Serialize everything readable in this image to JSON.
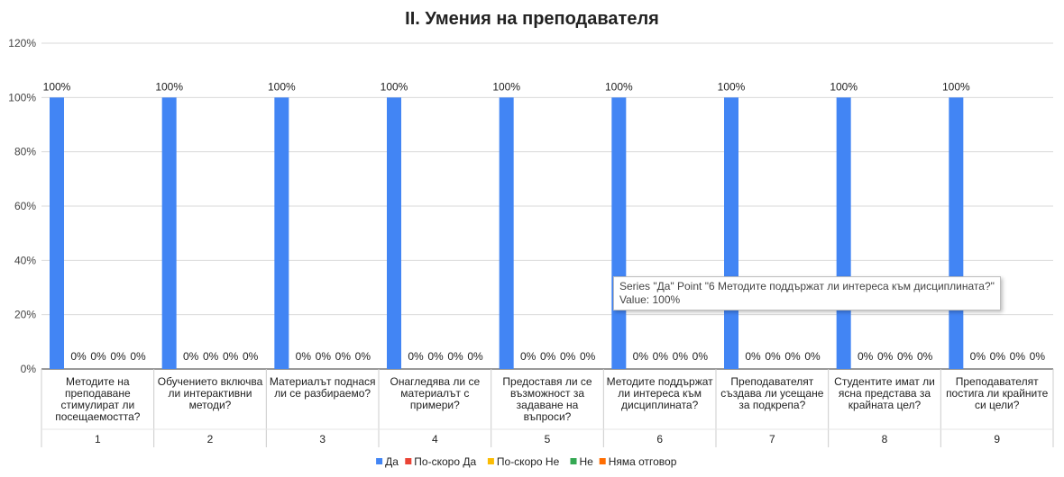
{
  "chart_data": {
    "type": "bar",
    "title": "II. Умения на преподавателя",
    "ylim": [
      0,
      1.2
    ],
    "y_ticks": [
      "0%",
      "20%",
      "40%",
      "60%",
      "80%",
      "100%",
      "120%"
    ],
    "grid": true,
    "legend_position": "bottom",
    "categories": [
      {
        "num": "1",
        "label": "Методите на преподаване стимулират ли посещаемостта?"
      },
      {
        "num": "2",
        "label": "Обучението включва ли интерактивни методи?"
      },
      {
        "num": "3",
        "label": "Материалът поднася ли се разбираемо?"
      },
      {
        "num": "4",
        "label": "Онагледява ли се материалът с примери?"
      },
      {
        "num": "5",
        "label": "Предоставя ли се възможност за задаване на въпроси?"
      },
      {
        "num": "6",
        "label": "Методите поддържат ли интереса към дисциплината?"
      },
      {
        "num": "7",
        "label": "Преподавателят създава ли усещане за подкрепа?"
      },
      {
        "num": "8",
        "label": "Студентите имат ли ясна представа за крайната цел?"
      },
      {
        "num": "9",
        "label": "Преподавателят постига ли крайните си цели?"
      }
    ],
    "category_label_lines": [
      [
        "Методите на",
        "преподаване",
        "стимулират ли",
        "посещаемостта?"
      ],
      [
        "Обучението включва",
        "ли интерактивни",
        "методи?"
      ],
      [
        "Материалът поднася",
        "ли се разбираемо?"
      ],
      [
        "Онагледява ли се",
        "материалът с",
        "примери?"
      ],
      [
        "Предоставя ли се",
        "възможност за",
        "задаване на",
        "въпроси?"
      ],
      [
        "Методите поддържат",
        "ли интереса към",
        "дисциплината?"
      ],
      [
        "Преподавателят",
        "създава ли усещане",
        "за подкрепа?"
      ],
      [
        "Студентите имат ли",
        "ясна представа за",
        "крайната цел?"
      ],
      [
        "Преподавателят",
        "постига ли крайните",
        "си цели?"
      ]
    ],
    "series": [
      {
        "name": "Да",
        "color": "#4285f4",
        "values": [
          1,
          1,
          1,
          1,
          1,
          1,
          1,
          1,
          1
        ],
        "labels": [
          "100%",
          "100%",
          "100%",
          "100%",
          "100%",
          "100%",
          "100%",
          "100%",
          "100%"
        ]
      },
      {
        "name": "По-скоро Да",
        "color": "#ea4335",
        "values": [
          0,
          0,
          0,
          0,
          0,
          0,
          0,
          0,
          0
        ],
        "labels": [
          "0%",
          "0%",
          "0%",
          "0%",
          "0%",
          "0%",
          "0%",
          "0%",
          "0%"
        ]
      },
      {
        "name": "По-скоро Не",
        "color": "#fbbc04",
        "values": [
          0,
          0,
          0,
          0,
          0,
          0,
          0,
          0,
          0
        ],
        "labels": [
          "0%",
          "0%",
          "0%",
          "0%",
          "0%",
          "0%",
          "0%",
          "0%",
          "0%"
        ]
      },
      {
        "name": "Не",
        "color": "#34a853",
        "values": [
          0,
          0,
          0,
          0,
          0,
          0,
          0,
          0,
          0
        ],
        "labels": [
          "0%",
          "0%",
          "0%",
          "0%",
          "0%",
          "0%",
          "0%",
          "0%",
          "0%"
        ]
      },
      {
        "name": "Няма отговор",
        "color": "#ff6d01",
        "values": [
          0,
          0,
          0,
          0,
          0,
          0,
          0,
          0,
          0
        ],
        "labels": [
          "0%",
          "0%",
          "0%",
          "0%",
          "0%",
          "0%",
          "0%",
          "0%",
          "0%"
        ]
      }
    ]
  },
  "tooltip": {
    "line1": "Series \"Да\" Point \"6 Методите поддържат ли интереса към дисциплината?\"",
    "line2": "Value: 100%"
  }
}
